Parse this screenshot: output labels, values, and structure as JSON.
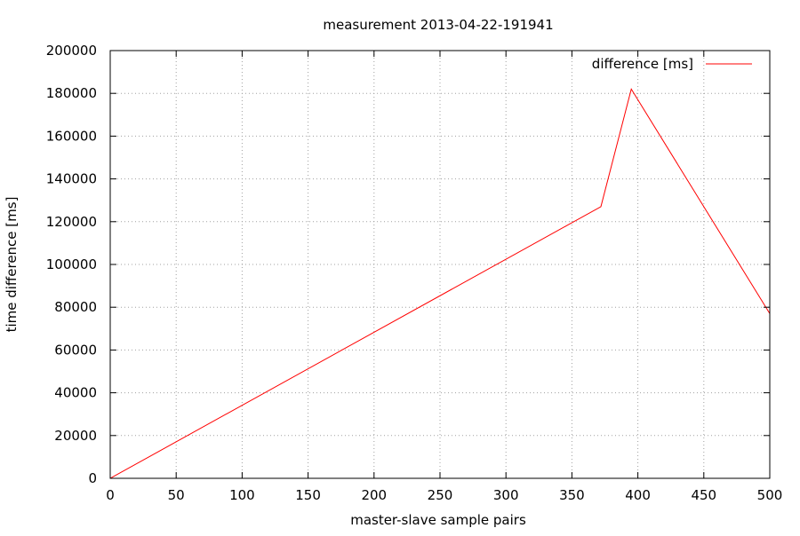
{
  "chart_data": {
    "type": "line",
    "title": "measurement 2013-04-22-191941",
    "xlabel": "master-slave sample pairs",
    "ylabel": "time difference [ms]",
    "xlim": [
      0,
      500
    ],
    "ylim": [
      0,
      200000
    ],
    "xticks": [
      0,
      50,
      100,
      150,
      200,
      250,
      300,
      350,
      400,
      450,
      500
    ],
    "yticks": [
      0,
      20000,
      40000,
      60000,
      80000,
      100000,
      120000,
      140000,
      160000,
      180000,
      200000
    ],
    "grid": true,
    "legend_position": "top-right",
    "series": [
      {
        "name": "difference [ms]",
        "color": "#ff0000",
        "points": [
          {
            "x": 0,
            "y": 0
          },
          {
            "x": 372,
            "y": 127000
          },
          {
            "x": 395,
            "y": 182000
          },
          {
            "x": 500,
            "y": 77000
          }
        ]
      }
    ]
  }
}
